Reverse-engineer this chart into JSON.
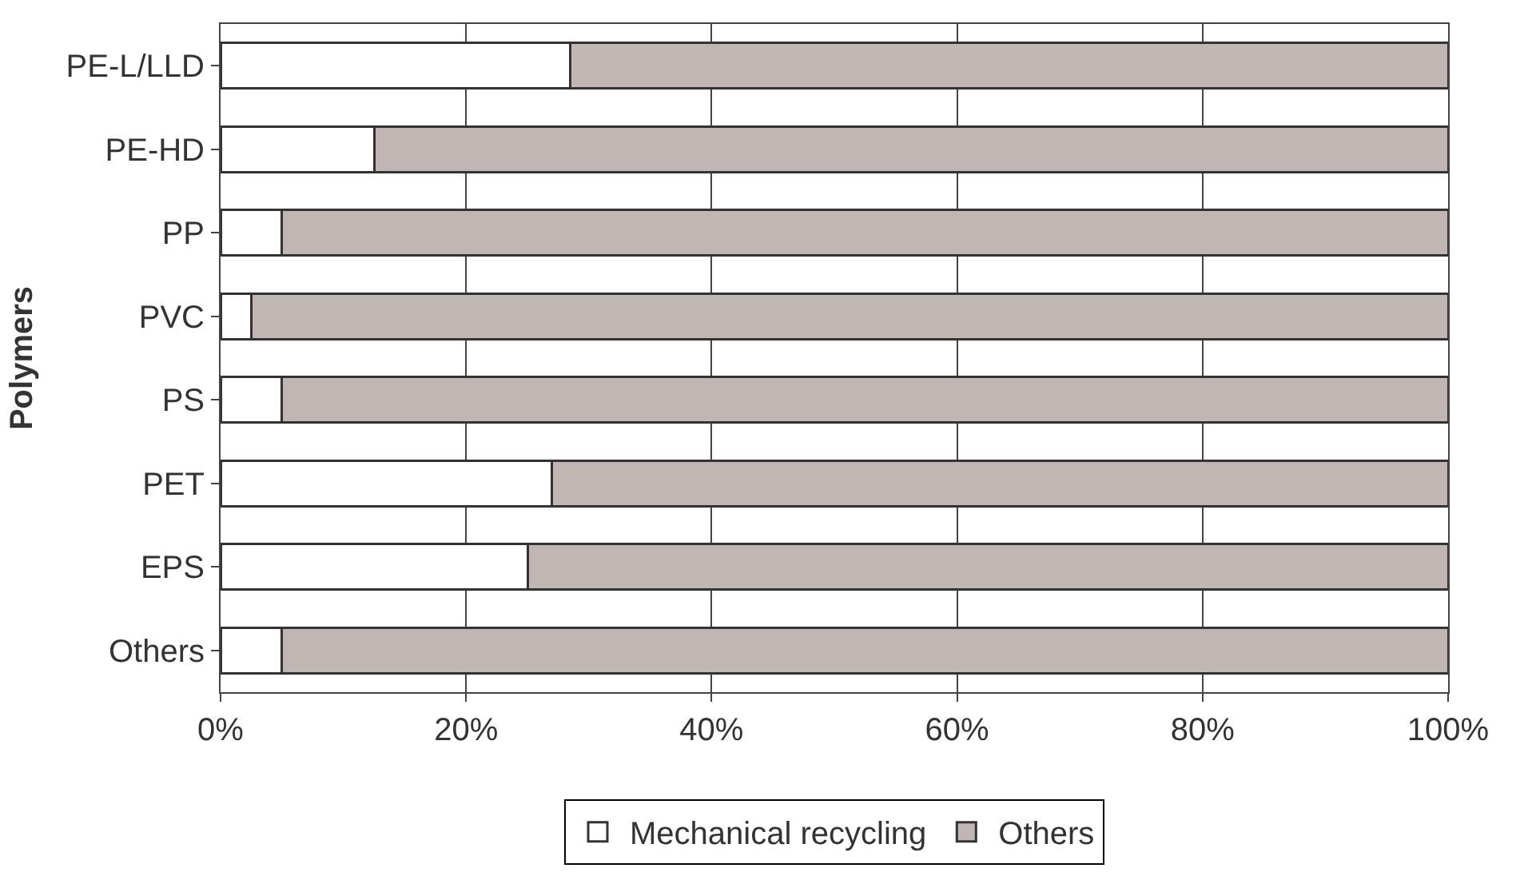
{
  "chart_data": {
    "type": "bar",
    "orientation": "horizontal",
    "stacked": true,
    "ylabel": "Polymers",
    "categories": [
      "PE-L/LLD",
      "PE-HD",
      "PP",
      "PVC",
      "PS",
      "PET",
      "EPS",
      "Others"
    ],
    "series": [
      {
        "name": "Mechanical recycling",
        "color": "#ffffff",
        "values": [
          28.5,
          12.5,
          5,
          2.5,
          5,
          27,
          25,
          5
        ]
      },
      {
        "name": "Others",
        "color": "#c0b7b4",
        "values": [
          71.5,
          87.5,
          95,
          97.5,
          95,
          73,
          75,
          95
        ]
      }
    ],
    "xlim": [
      0,
      100
    ],
    "xticks": [
      {
        "value": 0,
        "label": "0%"
      },
      {
        "value": 20,
        "label": "20%"
      },
      {
        "value": 40,
        "label": "40%"
      },
      {
        "value": 60,
        "label": "60%"
      },
      {
        "value": 80,
        "label": "80%"
      },
      {
        "value": 100,
        "label": "100%"
      }
    ],
    "grid": "x",
    "legend": "bottom"
  }
}
